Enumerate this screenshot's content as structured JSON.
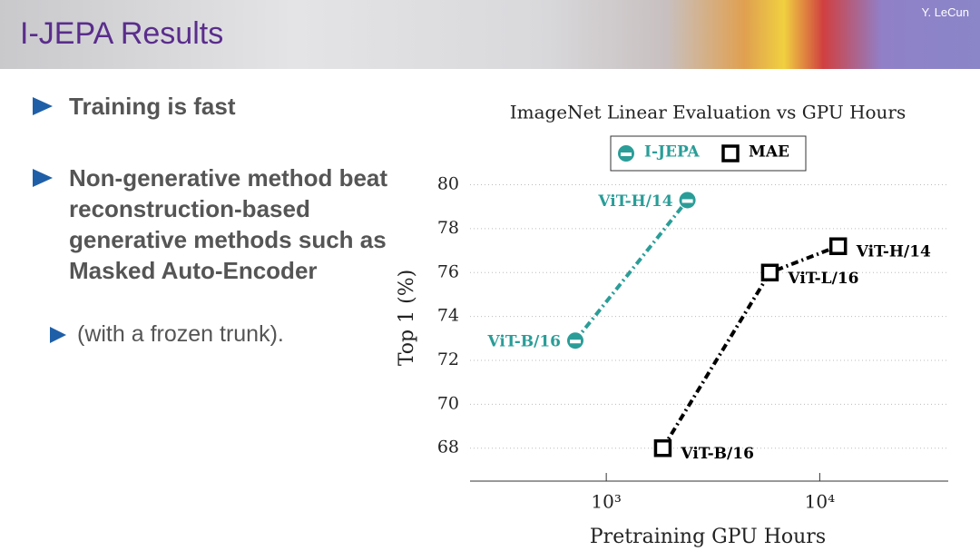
{
  "header": {
    "title": "I-JEPA Results",
    "author": "Y. LeCun"
  },
  "bullets": [
    "Training is fast",
    "Non-generative method beat reconstruction-based generative methods such as Masked Auto-Encoder"
  ],
  "sub_bullet": "(with a frozen trunk).",
  "chart_data": {
    "type": "line",
    "title": "ImageNet Linear Evaluation vs GPU Hours",
    "x_label": "Pretraining GPU Hours",
    "y_label": "Top 1 (%)",
    "xscale": "log",
    "xlim": [
      230,
      40000
    ],
    "xticks": [
      {
        "value": 1000,
        "label": "10³"
      },
      {
        "value": 10000,
        "label": "10⁴"
      }
    ],
    "ylim": [
      66.5,
      81.8
    ],
    "yticks": [
      68,
      70,
      72,
      74,
      76,
      78,
      80
    ],
    "grid": true,
    "legend": "top",
    "series": [
      {
        "name": "I-JEPA",
        "color": "#2a9d98",
        "marker": "circle",
        "x": [
          716,
          2400
        ],
        "values": [
          72.9,
          79.3
        ],
        "point_labels": [
          "ViT-B/16",
          "ViT-H/14"
        ]
      },
      {
        "name": "MAE",
        "color": "#000000",
        "marker": "square",
        "x": [
          1840,
          5840,
          12200
        ],
        "values": [
          68,
          76,
          77.2
        ],
        "point_labels": [
          "ViT-B/16",
          "ViT-L/16",
          "ViT-H/14"
        ]
      }
    ]
  }
}
